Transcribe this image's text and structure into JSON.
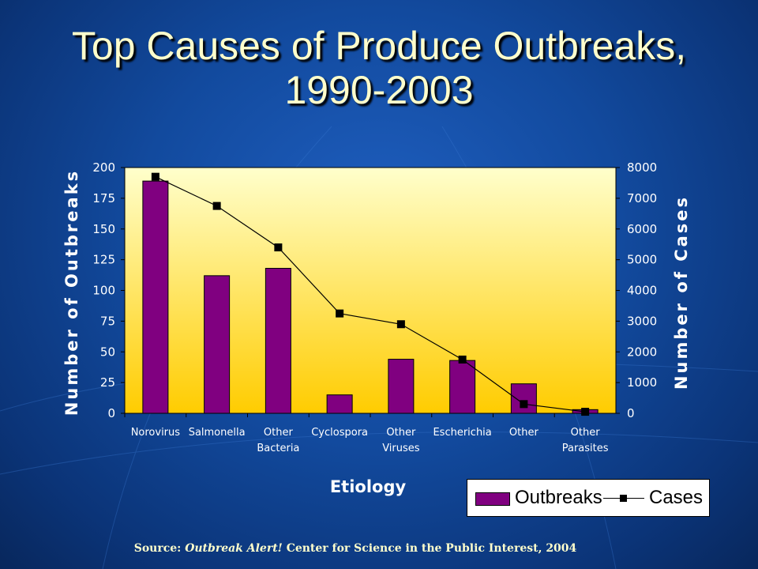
{
  "title": {
    "line1": "Top Causes of Produce Outbreaks,",
    "line2": "1990-2003"
  },
  "source": {
    "prefix": "Source: ",
    "italic": "Outbreak Alert!",
    "suffix": " Center for Science in the Public Interest, 2004"
  },
  "colors": {
    "bar": "#800080",
    "line": "#000000",
    "plot_top": "#ffffcc",
    "plot_bottom": "#ffcc00",
    "text_light": "#ffffcc"
  },
  "chart_data": {
    "type": "bar",
    "categories": [
      [
        "Norovirus"
      ],
      [
        "Salmonella"
      ],
      [
        "Other",
        "Bacteria"
      ],
      [
        "Cyclospora"
      ],
      [
        "Other",
        "Viruses"
      ],
      [
        "Escherichia"
      ],
      [
        "Other"
      ],
      [
        "Other",
        "Parasites"
      ]
    ],
    "series": [
      {
        "name": "Outbreaks",
        "type": "bar",
        "axis": "left",
        "values": [
          189,
          112,
          118,
          15,
          44,
          43,
          24,
          3
        ]
      },
      {
        "name": "Cases",
        "type": "line",
        "axis": "right",
        "values": [
          7700,
          6750,
          5400,
          3250,
          2900,
          1750,
          300,
          50
        ]
      }
    ],
    "xlabel": "Etiology",
    "ylabel": "Number of Outbreaks",
    "y2label": "Number of Cases",
    "ylim": [
      0,
      200
    ],
    "y2lim": [
      0,
      8000
    ],
    "yticks": [
      0,
      25,
      50,
      75,
      100,
      125,
      150,
      175,
      200
    ],
    "y2ticks": [
      0,
      1000,
      2000,
      3000,
      4000,
      5000,
      6000,
      7000,
      8000
    ],
    "legend": {
      "position": "bottom-right",
      "entries": [
        "Outbreaks",
        "Cases"
      ]
    }
  }
}
